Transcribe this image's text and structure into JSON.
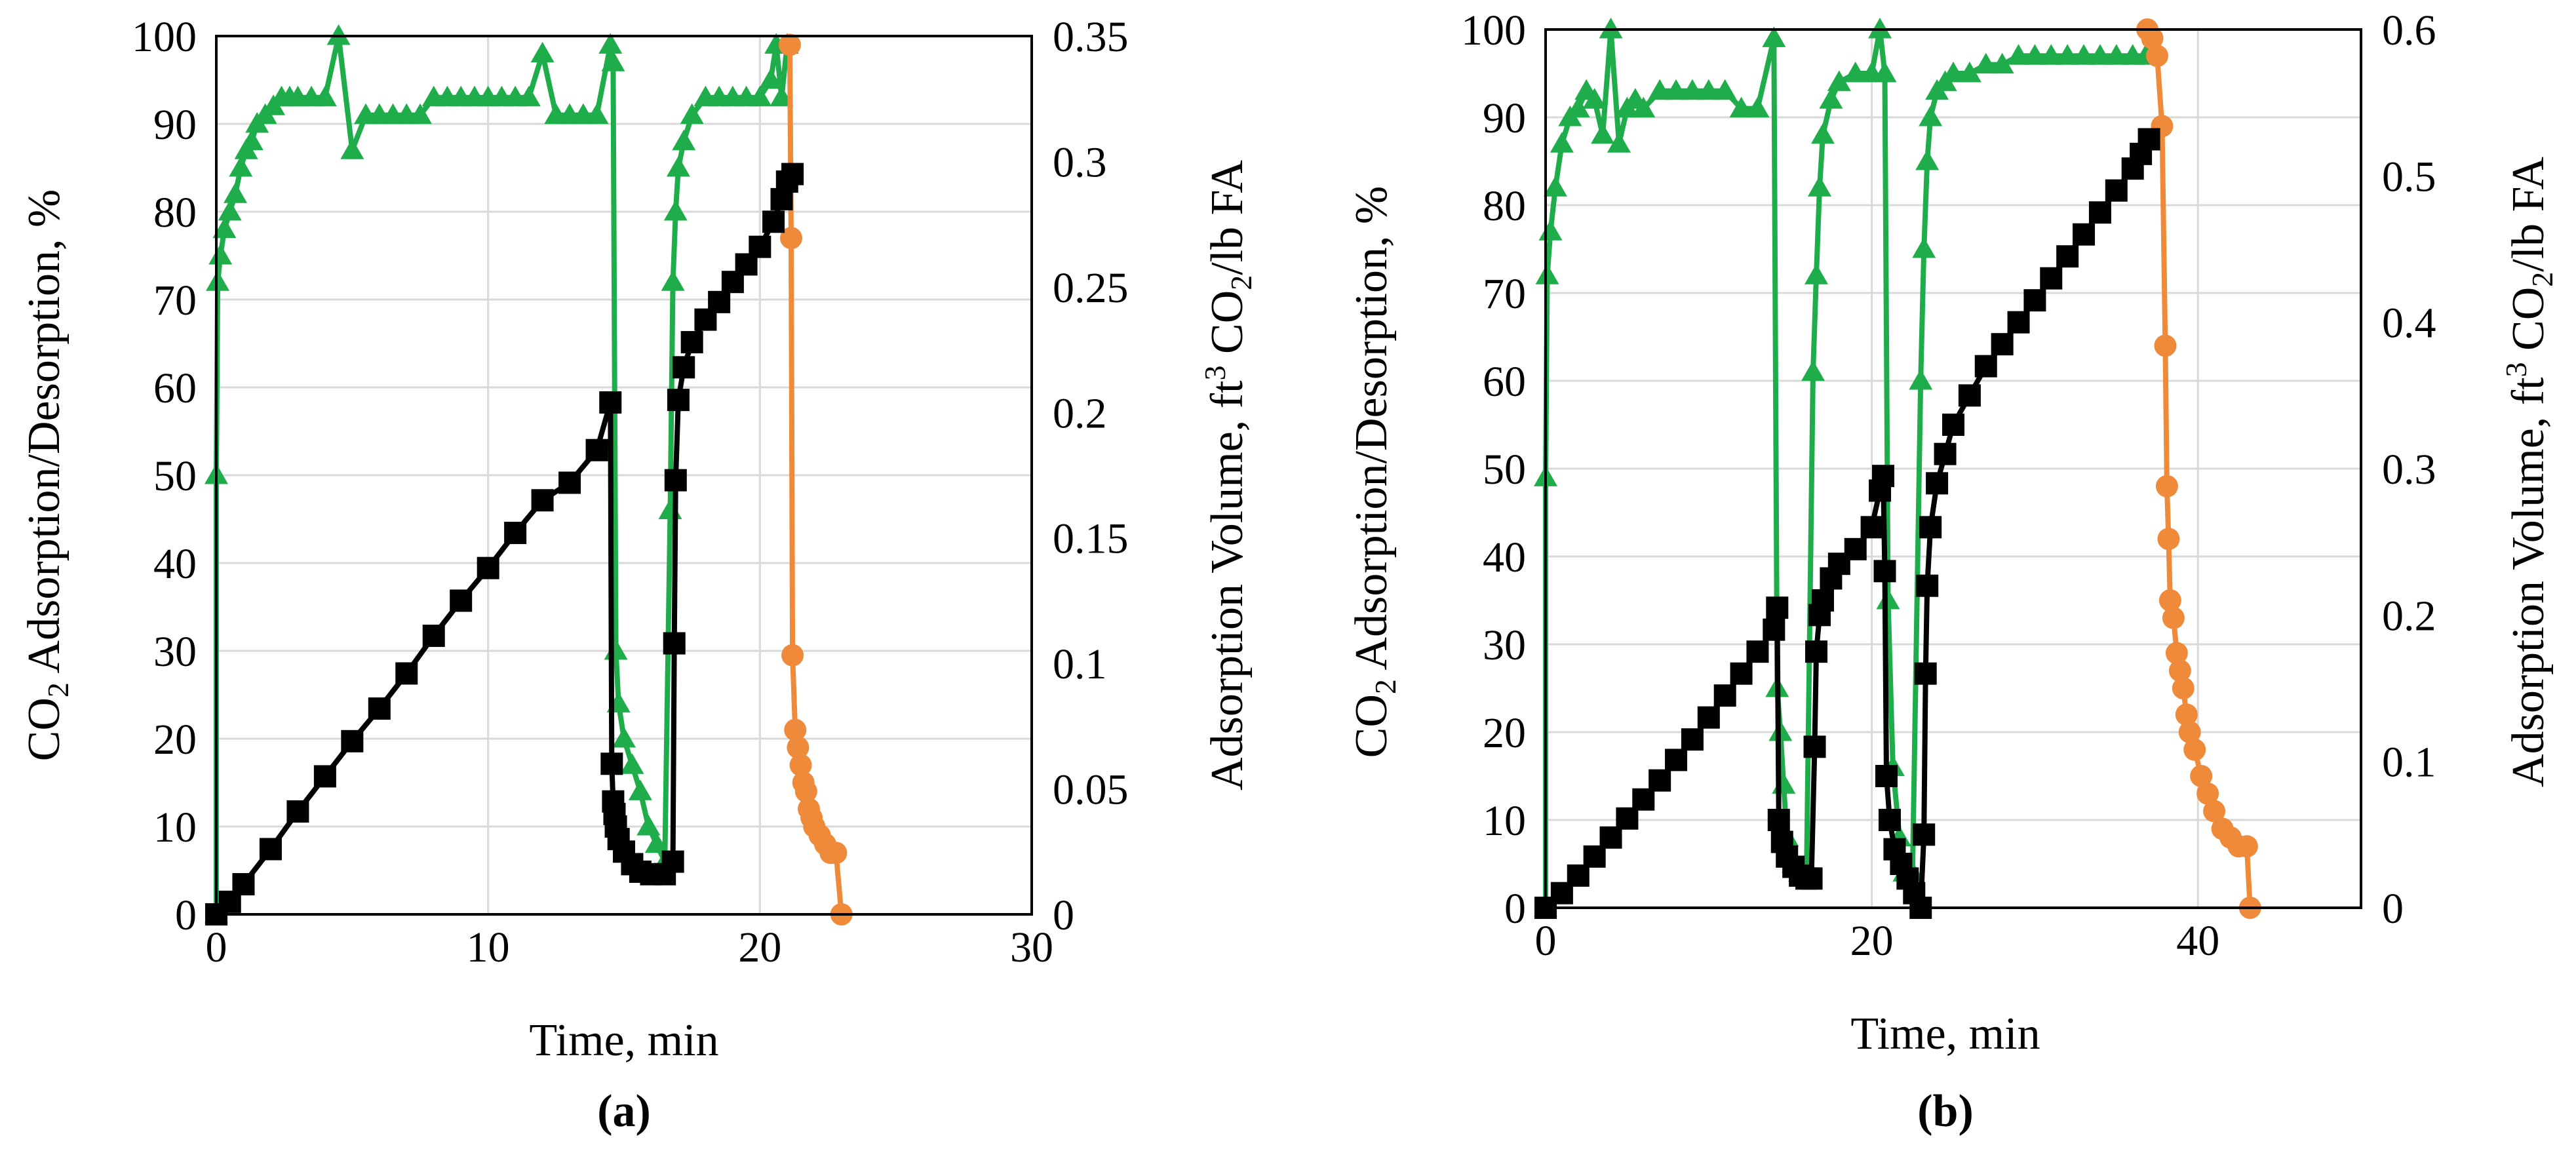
{
  "chart_data": [
    {
      "type": "line",
      "panel": "a",
      "panel_label": "(a)",
      "xlabel": "Time, min",
      "ylabel_left": "CO2 Adsorption/Desorption, %",
      "ylabel_right": "Adsorption Volume, ft3 CO2/lb FA",
      "xlim": [
        0,
        30
      ],
      "ylim_left": [
        0,
        100
      ],
      "ylim_right": [
        0,
        0.35
      ],
      "x_ticks": [
        0,
        10,
        20,
        30
      ],
      "y_ticks_left": [
        0,
        10,
        20,
        30,
        40,
        50,
        60,
        70,
        80,
        90,
        100
      ],
      "y_ticks_right": [
        0,
        0.05,
        0.1,
        0.15,
        0.2,
        0.25,
        0.3,
        0.35
      ],
      "x_tick_labels": [
        "0",
        "10",
        "20",
        "30"
      ],
      "y_tick_labels_left": [
        "0",
        "10",
        "20",
        "30",
        "40",
        "50",
        "60",
        "70",
        "80",
        "90",
        "100"
      ],
      "y_tick_labels_right": [
        "0",
        "0.05",
        "0.1",
        "0.15",
        "0.2",
        "0.25",
        "0.3",
        "0.35"
      ],
      "grid": true,
      "series": [
        {
          "name": "Adsorption %",
          "axis": "left",
          "marker": "triangle",
          "color": "#1fad4b",
          "x": [
            0,
            0,
            0.05,
            0.15,
            0.3,
            0.5,
            0.7,
            0.9,
            1.1,
            1.3,
            1.5,
            1.8,
            2.1,
            2.4,
            2.7,
            3.0,
            3.5,
            4.0,
            4.5,
            5.0,
            5.5,
            6.0,
            6.5,
            7.0,
            7.5,
            8.0,
            8.5,
            9.0,
            9.5,
            10.0,
            10.5,
            11.0,
            11.5,
            12.0,
            12.5,
            13.0,
            13.5,
            14.0,
            14.5,
            14.6,
            14.7,
            14.8,
            15.0,
            15.3,
            15.6,
            15.9,
            16.2,
            16.5,
            16.7,
            16.8,
            16.9,
            17.0,
            17.2,
            17.5,
            18.0,
            18.5,
            19.0,
            19.5,
            20.0,
            20.4,
            20.6,
            20.8,
            21.0
          ],
          "y": [
            0,
            50,
            72,
            75,
            78,
            80,
            82,
            85,
            87,
            88,
            90,
            91,
            92,
            93,
            93,
            93,
            93,
            93,
            100,
            87,
            91,
            91,
            91,
            91,
            91,
            93,
            93,
            93,
            93,
            93,
            93,
            93,
            93,
            98,
            91,
            91,
            91,
            91,
            99,
            97,
            30,
            24,
            20,
            17,
            14,
            10,
            8,
            6,
            46,
            72,
            80,
            85,
            88,
            91,
            93,
            93,
            93,
            93,
            93,
            95,
            99,
            93,
            99
          ]
        },
        {
          "name": "Desorption %",
          "axis": "left",
          "marker": "circle",
          "color": "#ef8a3a",
          "x": [
            21.1,
            21.15,
            21.2,
            21.3,
            21.4,
            21.5,
            21.6,
            21.7,
            21.8,
            21.9,
            22.0,
            22.2,
            22.4,
            22.6,
            22.8,
            23.0
          ],
          "y": [
            99,
            77,
            29.5,
            21,
            19,
            17,
            15,
            14,
            12,
            11,
            10,
            9,
            8,
            7,
            7,
            0
          ]
        },
        {
          "name": "Adsorption Volume",
          "axis": "right",
          "marker": "square",
          "color": "#000000",
          "x": [
            0,
            0.5,
            1,
            2,
            3,
            4,
            5,
            6,
            7,
            8,
            9,
            10,
            11,
            12,
            13,
            14,
            14.5,
            14.55,
            14.6,
            14.65,
            14.7,
            14.8,
            15.0,
            15.3,
            15.6,
            16.0,
            16.5,
            16.8,
            16.85,
            16.9,
            17.0,
            17.2,
            17.5,
            18.0,
            18.5,
            19.0,
            19.5,
            20.0,
            20.5,
            20.8,
            21.0,
            21.2
          ],
          "y": [
            0.0,
            0.005,
            0.012,
            0.026,
            0.041,
            0.055,
            0.069,
            0.082,
            0.096,
            0.111,
            0.125,
            0.138,
            0.152,
            0.165,
            0.172,
            0.185,
            0.204,
            0.06,
            0.045,
            0.04,
            0.035,
            0.03,
            0.025,
            0.02,
            0.017,
            0.016,
            0.016,
            0.021,
            0.108,
            0.173,
            0.205,
            0.218,
            0.228,
            0.237,
            0.244,
            0.252,
            0.259,
            0.266,
            0.276,
            0.285,
            0.292,
            0.295
          ]
        }
      ]
    },
    {
      "type": "line",
      "panel": "b",
      "panel_label": "(b)",
      "xlabel": "Time, min",
      "ylabel_left": "CO2 Adsorption/Desorption, %",
      "ylabel_right": "Adsorption Volume, ft3 CO2/lb FA",
      "xlim": [
        0,
        50
      ],
      "ylim_left": [
        0,
        100
      ],
      "ylim_right": [
        0,
        0.6
      ],
      "x_ticks": [
        0,
        20,
        40
      ],
      "y_ticks_left": [
        0,
        10,
        20,
        30,
        40,
        50,
        60,
        70,
        80,
        90,
        100
      ],
      "y_ticks_right": [
        0,
        0.1,
        0.2,
        0.3,
        0.4,
        0.5,
        0.6
      ],
      "x_tick_labels": [
        "0",
        "20",
        "40"
      ],
      "y_tick_labels_left": [
        "0",
        "10",
        "20",
        "30",
        "40",
        "50",
        "60",
        "70",
        "80",
        "90",
        "100"
      ],
      "y_tick_labels_right": [
        "0",
        "0.1",
        "0.2",
        "0.3",
        "0.4",
        "0.5",
        "0.6"
      ],
      "grid": true,
      "series": [
        {
          "name": "Adsorption %",
          "axis": "left",
          "marker": "triangle",
          "color": "#1fad4b",
          "x": [
            0,
            0,
            0.1,
            0.3,
            0.6,
            1.0,
            1.5,
            2.0,
            2.5,
            3.0,
            3.5,
            4.0,
            4.5,
            5.0,
            5.5,
            6.0,
            7.0,
            8.0,
            9.0,
            10.0,
            11.0,
            12.0,
            13.0,
            14.0,
            14.2,
            14.4,
            14.6,
            14.8,
            15.2,
            15.6,
            16.0,
            16.4,
            16.6,
            16.8,
            17.0,
            17.5,
            18.0,
            19.0,
            20.0,
            20.5,
            20.8,
            21.0,
            21.3,
            21.7,
            22.0,
            22.5,
            23.0,
            23.2,
            23.4,
            23.6,
            24.0,
            24.5,
            25.0,
            26.0,
            27.0,
            28.0,
            29.0,
            30.0,
            31.0,
            32.0,
            33.0,
            34.0,
            35.0,
            36.0,
            36.8
          ],
          "y": [
            0,
            49,
            72,
            77,
            82,
            87,
            90,
            91,
            93,
            92,
            88,
            100,
            87,
            91,
            92,
            91,
            93,
            93,
            93,
            93,
            93,
            91,
            91,
            99,
            25,
            20,
            14,
            8,
            5,
            4,
            4,
            61,
            72,
            82,
            88,
            92,
            94,
            95,
            95,
            100,
            95,
            35,
            16,
            8,
            4,
            4,
            60,
            75,
            85,
            90,
            93,
            94,
            95,
            95,
            96,
            96,
            97,
            97,
            97,
            97,
            97,
            97,
            97,
            97,
            97
          ]
        },
        {
          "name": "Desorption %",
          "axis": "left",
          "marker": "circle",
          "color": "#ef8a3a",
          "x": [
            36.9,
            37.2,
            37.5,
            37.8,
            38.0,
            38.1,
            38.2,
            38.3,
            38.5,
            38.7,
            38.9,
            39.1,
            39.3,
            39.5,
            39.8,
            40.2,
            40.6,
            41.0,
            41.5,
            42.0,
            42.5,
            43.0,
            43.2
          ],
          "y": [
            100,
            99,
            97,
            89,
            64,
            48,
            42,
            35,
            33,
            29,
            27,
            25,
            22,
            20,
            18,
            15,
            13,
            11,
            9,
            8,
            7,
            7,
            0
          ]
        },
        {
          "name": "Adsorption Volume",
          "axis": "right",
          "marker": "square",
          "color": "#000000",
          "x": [
            0,
            1,
            2,
            3,
            4,
            5,
            6,
            7,
            8,
            9,
            10,
            11,
            12,
            13,
            14,
            14.2,
            14.3,
            14.5,
            14.8,
            15.2,
            15.6,
            16.0,
            16.3,
            16.5,
            16.6,
            16.8,
            17.0,
            17.5,
            18.0,
            19.0,
            20.0,
            20.5,
            20.7,
            20.8,
            20.9,
            21.1,
            21.4,
            21.8,
            22.2,
            22.6,
            23.0,
            23.2,
            23.3,
            23.4,
            23.6,
            24.0,
            24.5,
            25.0,
            26.0,
            27.0,
            28.0,
            29.0,
            30.0,
            31.0,
            32.0,
            33.0,
            34.0,
            35.0,
            36.0,
            36.5,
            37.0
          ],
          "y": [
            0.0,
            0.01,
            0.022,
            0.035,
            0.048,
            0.061,
            0.074,
            0.087,
            0.101,
            0.115,
            0.13,
            0.145,
            0.16,
            0.175,
            0.19,
            0.205,
            0.06,
            0.045,
            0.035,
            0.028,
            0.022,
            0.02,
            0.02,
            0.11,
            0.175,
            0.2,
            0.21,
            0.225,
            0.235,
            0.245,
            0.26,
            0.285,
            0.295,
            0.23,
            0.09,
            0.06,
            0.04,
            0.03,
            0.02,
            0.01,
            0.0,
            0.05,
            0.16,
            0.22,
            0.26,
            0.29,
            0.31,
            0.33,
            0.35,
            0.37,
            0.385,
            0.4,
            0.415,
            0.43,
            0.445,
            0.46,
            0.475,
            0.49,
            0.505,
            0.515,
            0.525
          ]
        }
      ]
    }
  ]
}
